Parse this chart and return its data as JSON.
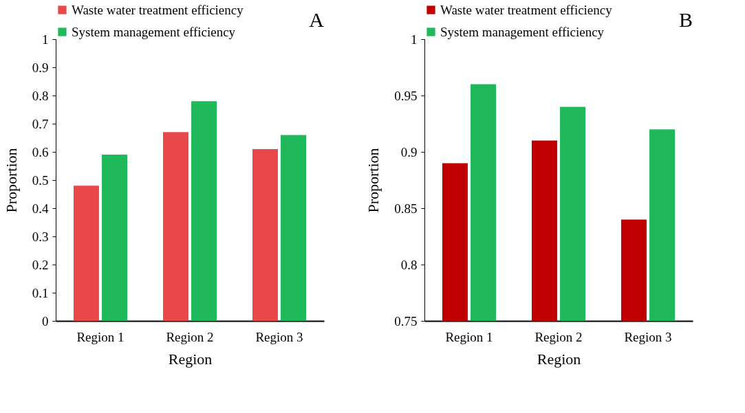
{
  "chart_data": [
    {
      "type": "bar",
      "title": "A",
      "xlabel": "Region",
      "ylabel": "Proportion",
      "categories": [
        "Region 1",
        "Region 2",
        "Region 3"
      ],
      "series": [
        {
          "name": "Waste water treatment efficiency",
          "color": "#e8484a",
          "values": [
            0.48,
            0.67,
            0.61
          ]
        },
        {
          "name": "System management efficiency",
          "color": "#1fb85a",
          "values": [
            0.59,
            0.78,
            0.66
          ]
        }
      ],
      "ylim": [
        0,
        1
      ],
      "yticks": [
        0,
        0.1,
        0.2,
        0.3,
        0.4,
        0.5,
        0.6,
        0.7,
        0.8,
        0.9,
        1
      ],
      "grid": false,
      "legend": "top"
    },
    {
      "type": "bar",
      "title": "B",
      "xlabel": "Region",
      "ylabel": "Proportion",
      "categories": [
        "Region 1",
        "Region 2",
        "Region 3"
      ],
      "series": [
        {
          "name": "Waste water treatment efficiency",
          "color": "#c00000",
          "values": [
            0.89,
            0.91,
            0.84
          ]
        },
        {
          "name": "System management efficiency",
          "color": "#1fb85a",
          "values": [
            0.96,
            0.94,
            0.92
          ]
        }
      ],
      "ylim": [
        0.75,
        1
      ],
      "yticks": [
        0.75,
        0.8,
        0.85,
        0.9,
        0.95,
        1
      ],
      "grid": false,
      "legend": "top"
    }
  ]
}
